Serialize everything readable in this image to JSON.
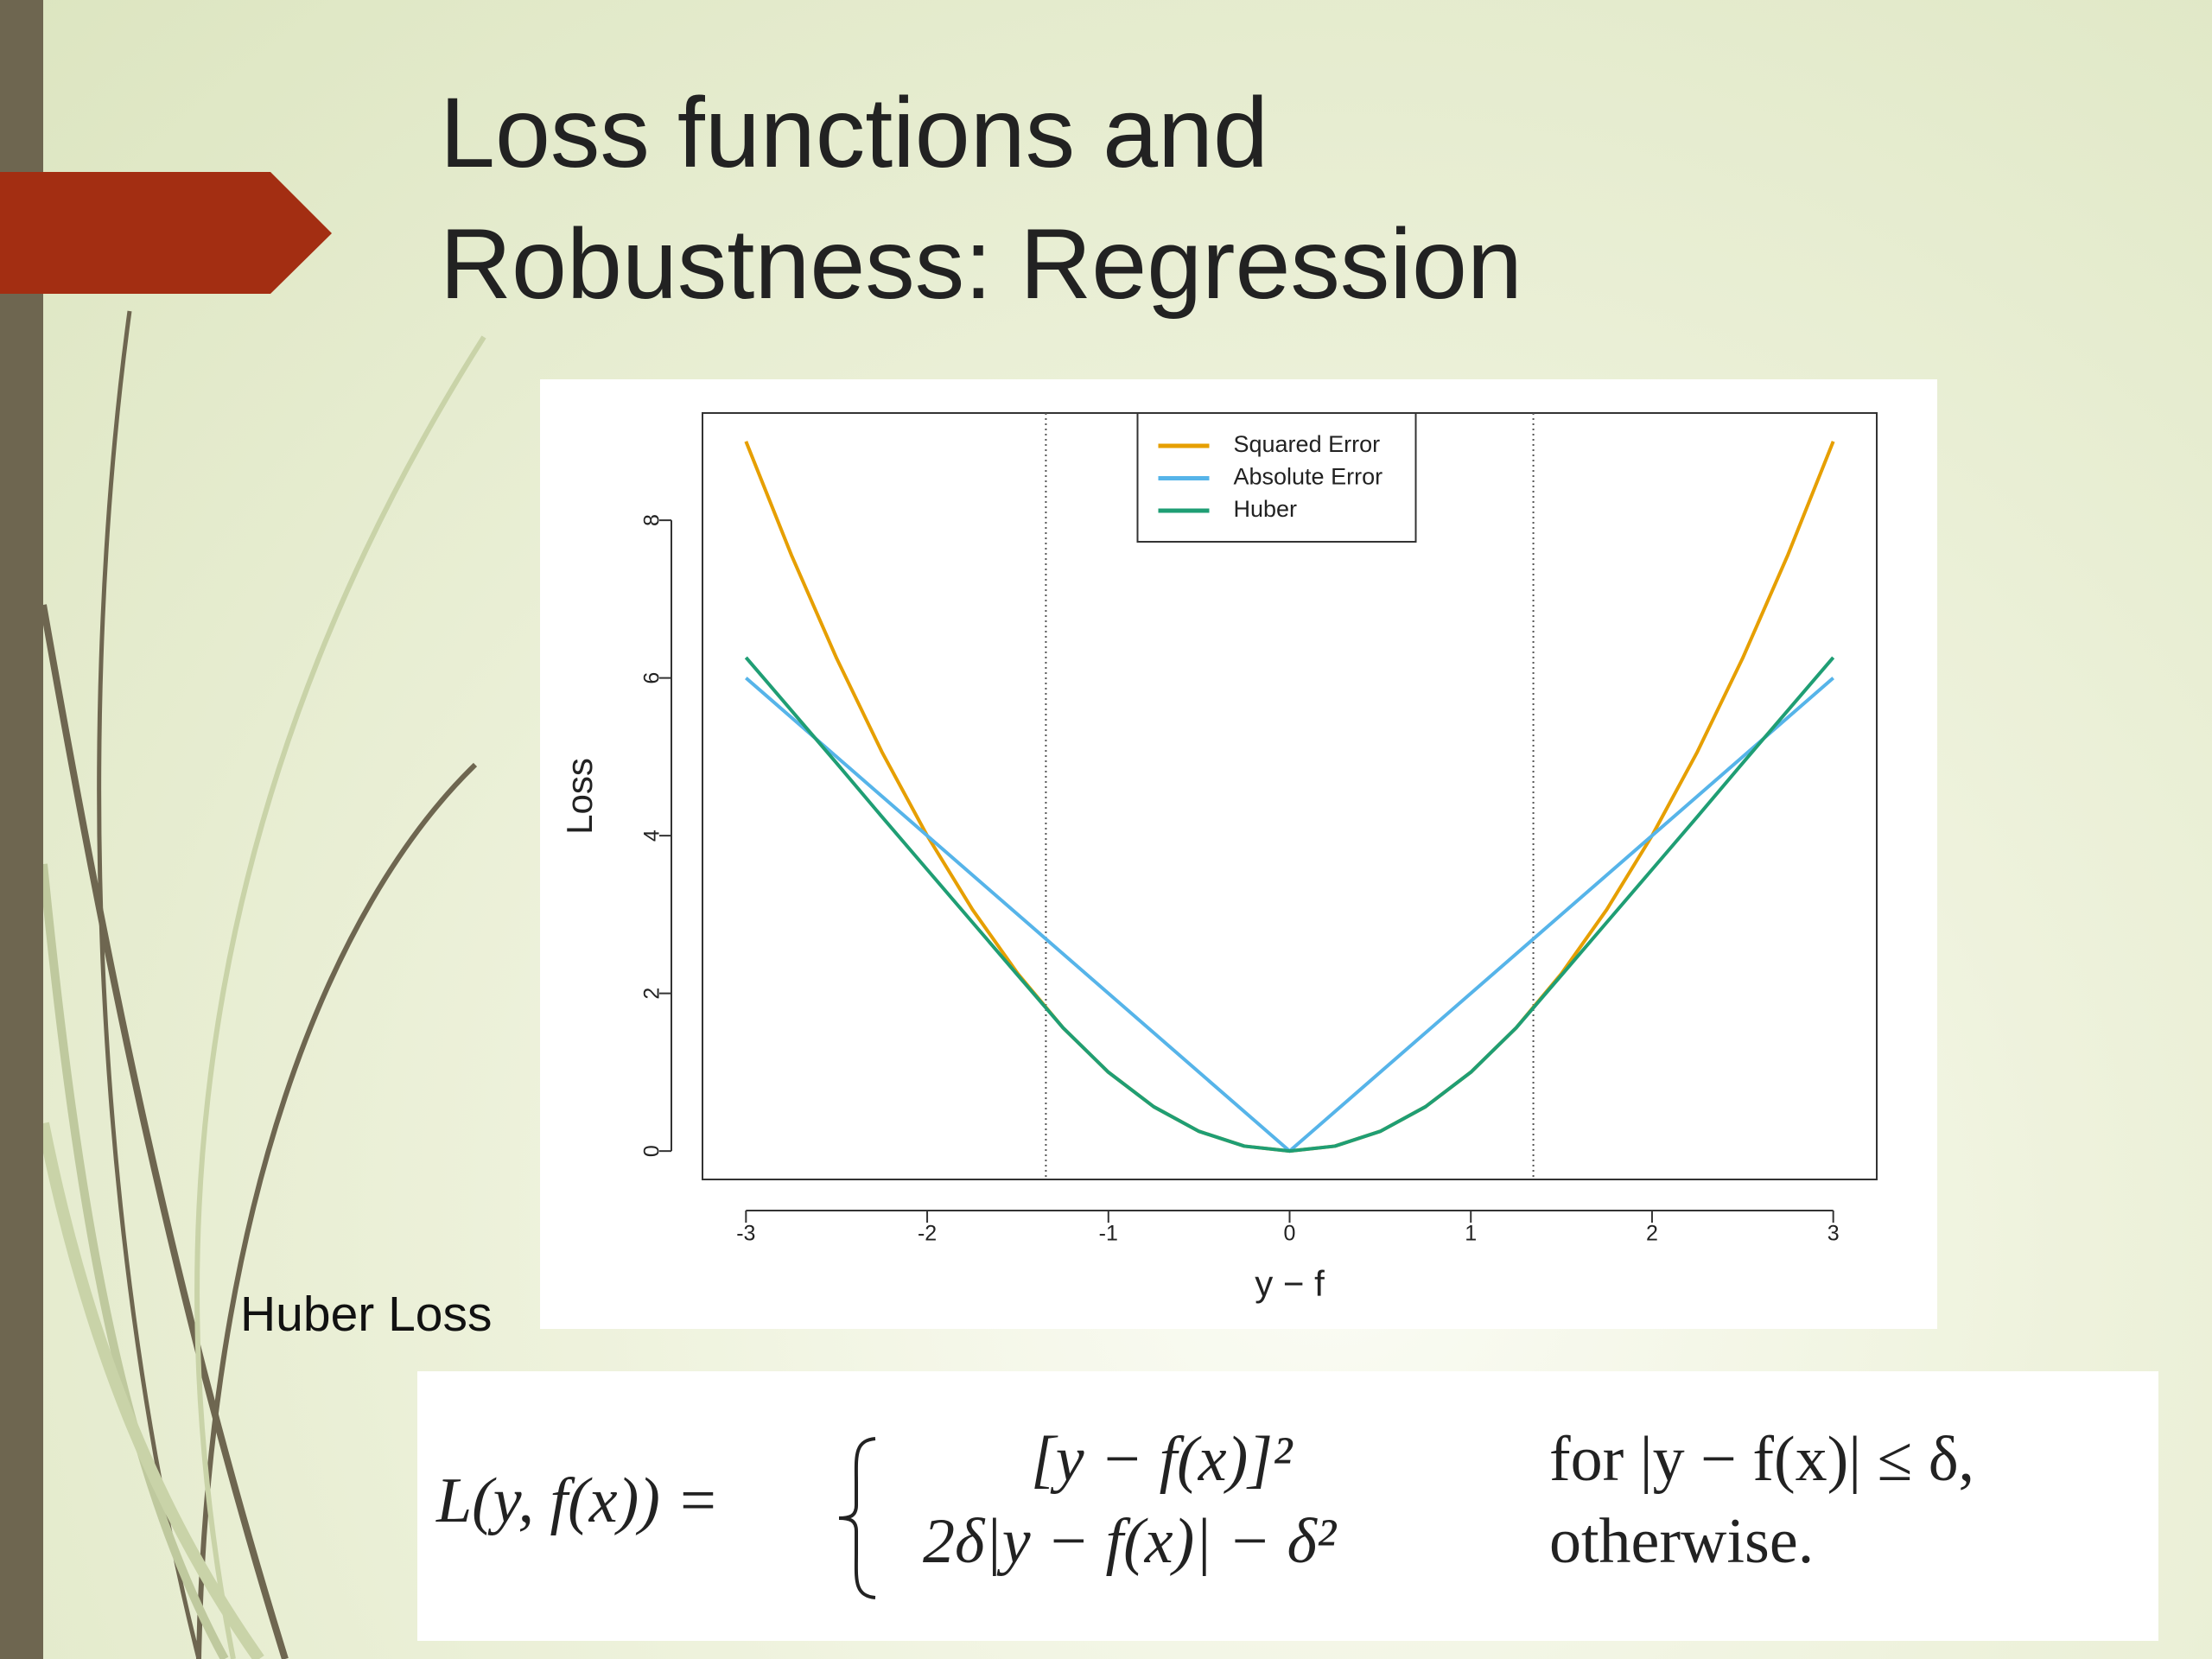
{
  "slide": {
    "title": "Loss functions and Robustness: Regression"
  },
  "chart_data": {
    "type": "line",
    "xlabel": "y − f",
    "ylabel": "Loss",
    "x": [
      -3,
      -2.75,
      -2.5,
      -2.25,
      -2,
      -1.75,
      -1.5,
      -1.25,
      -1,
      -0.75,
      -0.5,
      -0.25,
      0,
      0.25,
      0.5,
      0.75,
      1,
      1.25,
      1.5,
      1.75,
      2,
      2.25,
      2.5,
      2.75,
      3
    ],
    "series": [
      {
        "name": "Squared Error",
        "color": "#E69F00",
        "values": [
          9,
          7.5625,
          6.25,
          5.0625,
          4,
          3.0625,
          2.25,
          1.5625,
          1,
          0.5625,
          0.25,
          0.0625,
          0,
          0.0625,
          0.25,
          0.5625,
          1,
          1.5625,
          2.25,
          3.0625,
          4,
          5.0625,
          6.25,
          7.5625,
          9
        ]
      },
      {
        "name": "Absolute Error",
        "color": "#56B4E9",
        "values": [
          6,
          5.5,
          5,
          4.5,
          4,
          3.5,
          3,
          2.5,
          2,
          1.5,
          1,
          0.5,
          0,
          0.5,
          1,
          1.5,
          2,
          2.5,
          3,
          3.5,
          4,
          4.5,
          5,
          5.5,
          6
        ]
      },
      {
        "name": "Huber",
        "color": "#1F9E74",
        "values": [
          6.26,
          5.59,
          4.92,
          4.24,
          3.57,
          2.9,
          2.23,
          1.5625,
          1,
          0.5625,
          0.25,
          0.0625,
          0,
          0.0625,
          0.25,
          0.5625,
          1,
          1.5625,
          2.23,
          2.9,
          3.57,
          4.24,
          4.92,
          5.59,
          6.26
        ]
      }
    ],
    "vlines": [
      -1.345,
      1.345
    ],
    "xlim": [
      -3.24,
      3.24
    ],
    "ylim": [
      -0.36,
      9.36
    ],
    "xticks": [
      -3,
      -2,
      -1,
      0,
      1,
      2,
      3
    ],
    "yticks": [
      0,
      2,
      4,
      6,
      8
    ],
    "legend": "top"
  },
  "caption": "Huber Loss",
  "formula": {
    "lhs": "L(y, f(x)) =",
    "cases": [
      [
        "[y − f(x)]²",
        "for |y − f(x)| ≤ δ,"
      ],
      [
        "2δ|y − f(x)| − δ²",
        "otherwise."
      ]
    ]
  }
}
